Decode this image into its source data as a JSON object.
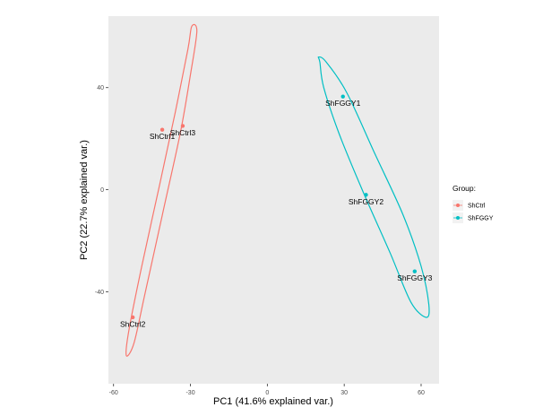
{
  "chart_data": {
    "type": "scatter",
    "title": "",
    "xlabel": "PC1 (41.6% explained var.)",
    "ylabel": "PC2 (22.7% explained var.)",
    "xlim": [
      -62,
      67
    ],
    "ylim": [
      -76,
      68
    ],
    "xticks": [
      -60,
      -30,
      0,
      30,
      60
    ],
    "yticks": [
      -40,
      0,
      40
    ],
    "grid": false,
    "legend_position": "right",
    "legend_title": "Group:",
    "series": [
      {
        "name": "ShCtrl",
        "color": "#F8766D",
        "points": [
          {
            "label": "ShCtrl1",
            "x": -41,
            "y": 23.5
          },
          {
            "label": "ShCtrl2",
            "x": -52.5,
            "y": -50
          },
          {
            "label": "ShCtrl3",
            "x": -33,
            "y": 25
          }
        ],
        "ellipse": {
          "path": [
            [
              -29.5,
              64
            ],
            [
              -31,
              55
            ],
            [
              -36,
              30
            ],
            [
              -42,
              2
            ],
            [
              -49,
              -30
            ],
            [
              -54,
              -55
            ],
            [
              -55,
              -65
            ],
            [
              -52,
              -60
            ],
            [
              -48,
              -42
            ],
            [
              -41,
              -10
            ],
            [
              -34,
              22
            ],
            [
              -30,
              45
            ],
            [
              -27.5,
              62
            ]
          ]
        }
      },
      {
        "name": "ShFGGY",
        "color": "#00BFC4",
        "points": [
          {
            "label": "ShFGGY1",
            "x": 29.5,
            "y": 36.5
          },
          {
            "label": "ShFGGY2",
            "x": 38.5,
            "y": -2
          },
          {
            "label": "ShFGGY3",
            "x": 57.5,
            "y": -32
          }
        ],
        "ellipse": {
          "path": [
            [
              20,
              52
            ],
            [
              23,
              50
            ],
            [
              31,
              38
            ],
            [
              42,
              14
            ],
            [
              53,
              -10
            ],
            [
              60,
              -30
            ],
            [
              63,
              -45
            ],
            [
              62,
              -50
            ],
            [
              56,
              -44
            ],
            [
              48,
              -25
            ],
            [
              37,
              0
            ],
            [
              28,
              22
            ],
            [
              22,
              40
            ],
            [
              20.5,
              50
            ]
          ]
        }
      }
    ]
  }
}
